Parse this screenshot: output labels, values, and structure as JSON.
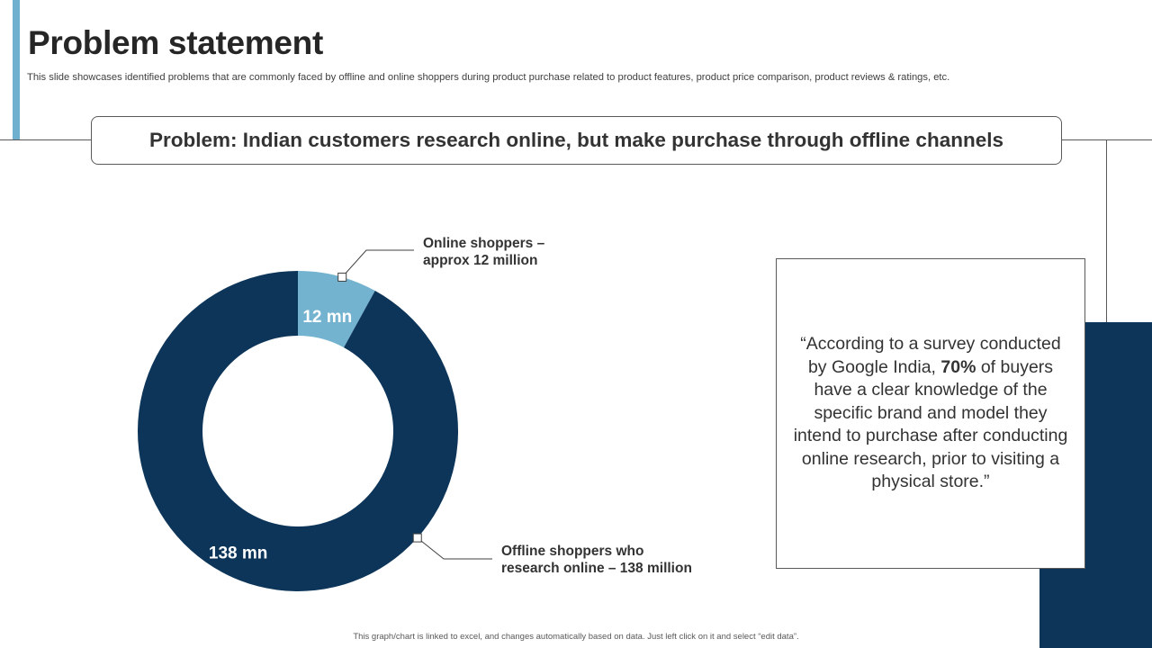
{
  "slide": {
    "title": "Problem statement",
    "subtitle": "This slide showcases identified problems that are commonly faced by offline and online shoppers during product purchase related to product features, product price comparison, product reviews & ratings, etc.",
    "problem": "Problem: Indian customers research online, but make purchase through offline channels",
    "quote": {
      "before": "“According to a survey conducted by Google India, ",
      "highlight": "70%",
      "after": " of buyers have a clear knowledge  of the specific brand and model they intend to purchase after conducting online research, prior to visiting a physical store.”"
    },
    "footnote": "This graph/chart is linked to excel, and changes automatically based on data. Just left click on it and select “edit data”."
  },
  "colors": {
    "accent_light": "#6fb0cf",
    "navy": "#0c3559",
    "online_slice": "#74b3d0",
    "offline_slice": "#0c3559"
  },
  "chart_data": {
    "type": "pie",
    "style": "donut",
    "slices": [
      {
        "value": 12,
        "label": "12 mn",
        "callout_line1": "Online shoppers –",
        "callout_line2": "approx 12 million",
        "color": "#74b3d0"
      },
      {
        "value": 138,
        "label": "138 mn",
        "callout_line1": "Offline shoppers who",
        "callout_line2": "research online – 138 million",
        "color": "#0c3559"
      }
    ]
  }
}
